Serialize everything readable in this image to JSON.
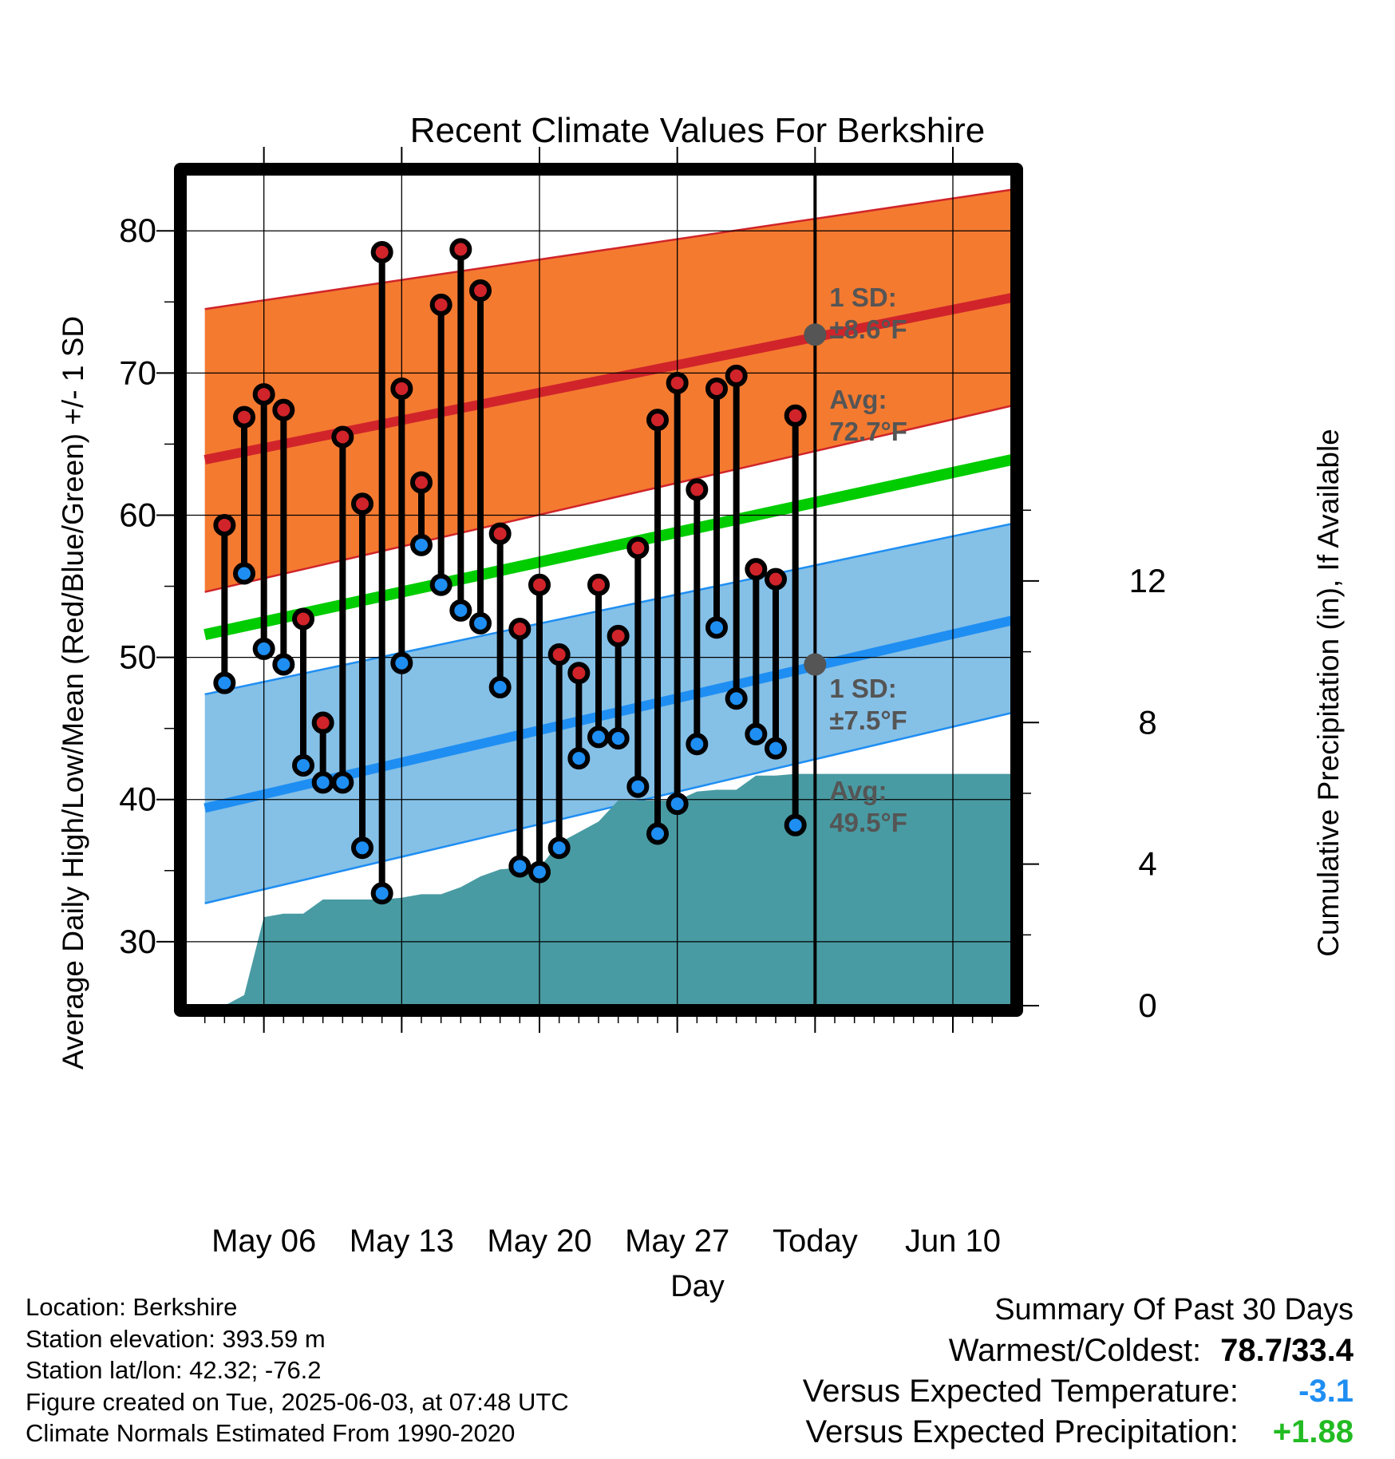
{
  "chart_data": {
    "type": "line",
    "title": "Recent Climate Values For Berkshire",
    "xlabel": "Day",
    "ylabel": "Average Daily High/Low/Mean (Red/Blue/Green) +/- 1 SD",
    "y2label": "Cumulative Precipitation (in), If Available",
    "xlim": [
      "2025-05-02",
      "2025-06-13"
    ],
    "ylim": [
      25.5,
      84
    ],
    "y2lim": [
      0,
      23.5
    ],
    "x_ticks": [
      "2025-05-06",
      "2025-05-13",
      "2025-05-20",
      "2025-05-27",
      "2025-06-03",
      "2025-06-10"
    ],
    "x_tick_labels": [
      "May 06",
      "May 13",
      "May 20",
      "May 27",
      "Today",
      "Jun 10"
    ],
    "y_ticks": [
      30,
      40,
      50,
      60,
      70,
      80
    ],
    "y2_ticks": [
      0,
      4,
      8,
      12
    ],
    "today": "2025-06-03",
    "window_label": "30\nDays",
    "normals": {
      "x": [
        "2025-05-03",
        "2025-06-13"
      ],
      "high_avg": [
        63.9,
        75.3
      ],
      "high_upper": [
        74.5,
        82.9
      ],
      "high_lower": [
        54.6,
        67.7
      ],
      "mean_avg": [
        51.6,
        63.9
      ],
      "low_avg": [
        39.4,
        52.6
      ],
      "low_upper": [
        47.4,
        59.4
      ],
      "low_lower": [
        32.7,
        46.1
      ]
    },
    "high_annotation": {
      "sd": "1 SD:\n±8.6°F",
      "avg": "Avg:\n72.7°F",
      "avg_value": 72.7
    },
    "low_annotation": {
      "sd": "1 SD:\n±7.5°F",
      "avg": "Avg:\n49.5°F",
      "avg_value": 49.5
    },
    "series": [
      {
        "name": "High",
        "x": [
          "2025-05-04",
          "2025-05-05",
          "2025-05-06",
          "2025-05-07",
          "2025-05-08",
          "2025-05-09",
          "2025-05-10",
          "2025-05-11",
          "2025-05-12",
          "2025-05-13",
          "2025-05-14",
          "2025-05-15",
          "2025-05-16",
          "2025-05-17",
          "2025-05-18",
          "2025-05-19",
          "2025-05-20",
          "2025-05-21",
          "2025-05-22",
          "2025-05-23",
          "2025-05-24",
          "2025-05-25",
          "2025-05-26",
          "2025-05-27",
          "2025-05-28",
          "2025-05-29",
          "2025-05-30",
          "2025-05-31",
          "2025-06-01",
          "2025-06-02"
        ],
        "values": [
          59.3,
          66.9,
          68.5,
          67.4,
          52.7,
          45.4,
          65.5,
          60.8,
          78.5,
          68.9,
          62.3,
          74.8,
          78.7,
          75.8,
          58.7,
          52.0,
          55.1,
          50.2,
          48.9,
          55.1,
          51.5,
          57.7,
          66.7,
          69.3,
          61.8,
          68.9,
          69.8,
          56.2,
          55.5,
          67.0
        ]
      },
      {
        "name": "Low",
        "x": [
          "2025-05-04",
          "2025-05-05",
          "2025-05-06",
          "2025-05-07",
          "2025-05-08",
          "2025-05-09",
          "2025-05-10",
          "2025-05-11",
          "2025-05-12",
          "2025-05-13",
          "2025-05-14",
          "2025-05-15",
          "2025-05-16",
          "2025-05-17",
          "2025-05-18",
          "2025-05-19",
          "2025-05-20",
          "2025-05-21",
          "2025-05-22",
          "2025-05-23",
          "2025-05-24",
          "2025-05-25",
          "2025-05-26",
          "2025-05-27",
          "2025-05-28",
          "2025-05-29",
          "2025-05-30",
          "2025-05-31",
          "2025-06-01",
          "2025-06-02"
        ],
        "values": [
          48.2,
          55.9,
          50.6,
          49.5,
          42.4,
          41.2,
          41.2,
          36.6,
          33.4,
          49.6,
          57.9,
          55.1,
          53.3,
          52.4,
          47.9,
          35.3,
          34.9,
          36.6,
          42.9,
          44.4,
          44.3,
          40.9,
          37.6,
          39.7,
          43.9,
          52.1,
          47.1,
          44.6,
          43.6,
          38.2
        ]
      },
      {
        "name": "Cumulative Precipitation",
        "x": [
          "2025-05-03",
          "2025-05-04",
          "2025-05-05",
          "2025-05-06",
          "2025-05-07",
          "2025-05-08",
          "2025-05-09",
          "2025-05-10",
          "2025-05-11",
          "2025-05-12",
          "2025-05-13",
          "2025-05-14",
          "2025-05-15",
          "2025-05-16",
          "2025-05-17",
          "2025-05-18",
          "2025-05-19",
          "2025-05-20",
          "2025-05-21",
          "2025-05-22",
          "2025-05-23",
          "2025-05-24",
          "2025-05-25",
          "2025-05-26",
          "2025-05-27",
          "2025-05-28",
          "2025-05-29",
          "2025-05-30",
          "2025-05-31",
          "2025-06-01",
          "2025-06-02",
          "2025-06-03",
          "2025-06-13"
        ],
        "values": [
          0,
          0,
          0.3,
          2.5,
          2.6,
          2.6,
          3.0,
          3.0,
          3.0,
          3.0,
          3.05,
          3.15,
          3.15,
          3.35,
          3.65,
          3.85,
          3.9,
          3.9,
          4.6,
          4.9,
          5.2,
          5.8,
          5.8,
          5.8,
          5.8,
          6.05,
          6.1,
          6.1,
          6.5,
          6.5,
          6.55,
          6.55,
          6.55
        ]
      }
    ]
  },
  "footer": {
    "location": "Location: Berkshire",
    "elevation": "Station elevation: 393.59 m",
    "latlon": "Station lat/lon: 42.32; -76.2",
    "created": "Figure created on Tue, 2025-06-03, at 07:48 UTC",
    "normals": "Climate Normals Estimated From 1990-2020"
  },
  "summary": {
    "title": "Summary Of Past 30 Days",
    "warm_cold_label": "Warmest/Coldest:",
    "warm_cold_value": "78.7/33.4",
    "temp_label": "Versus Expected Temperature:",
    "temp_value": "-3.1",
    "precip_label": "Versus Expected Precipitation:",
    "precip_value": "+1.88"
  },
  "colors": {
    "high_band": "#f47a30",
    "high_line": "#d0242a",
    "low_band": "#85c0e7",
    "low_line": "#1e8ef2",
    "mean_line": "#00cc00",
    "precip_fill": "#499ba3",
    "high_dot": "#d0242a",
    "low_dot": "#1e8ef2",
    "annotation_text": "#555555",
    "temp_anomaly": "#1e8ef2",
    "precip_anomaly": "#22bb22"
  }
}
